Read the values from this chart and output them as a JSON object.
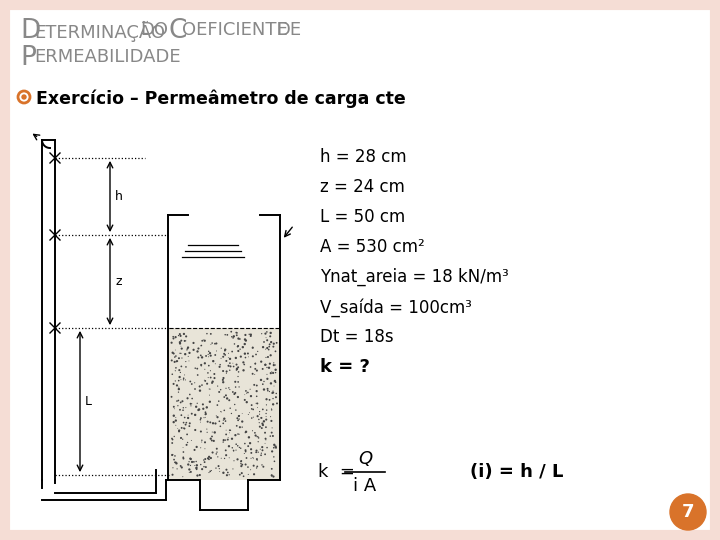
{
  "title_line1_big": "D",
  "title_line1_small": "ETERMINAÇÃO",
  "title_word2_big": "DO",
  "title_word3_big": "C",
  "title_word3_small": "OEFICIENTE",
  "title_word4_big": "DE",
  "title_line2_big": "P",
  "title_line2_small": "ERMEABILIDADE",
  "subtitle": "Exercício – Permeâmetro de carga cte",
  "params": [
    "h = 28 cm",
    "z = 24 cm",
    "L = 50 cm",
    "A = 530 cm²",
    "Ynat_areia = 18 kN/m³",
    "V_saída = 100cm³",
    "Dt = 18s",
    "k = ?"
  ],
  "formula_left": "k  =",
  "formula_numerator": "Q",
  "formula_denominator": "i A",
  "formula_right": "(i) = h / L",
  "page_number": "7",
  "bg_color": "#f5ddd5",
  "content_bg": "#ffffff",
  "title_color": "#888888",
  "subtitle_color": "#000000",
  "text_color": "#000000",
  "page_circle_color": "#d9732a",
  "bullet_color": "#d9732a",
  "pipe_color": "#000000"
}
